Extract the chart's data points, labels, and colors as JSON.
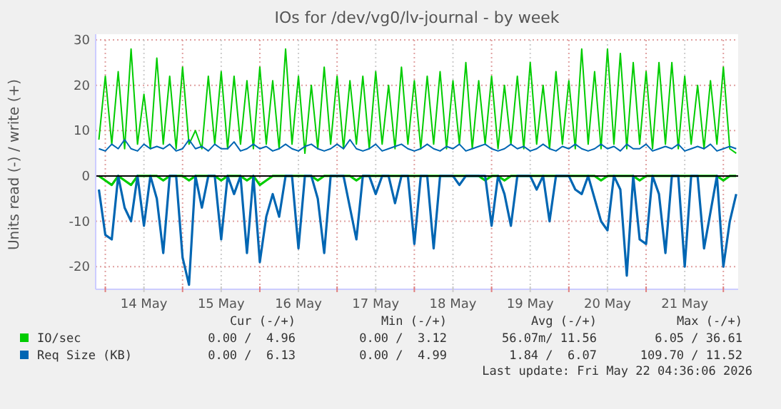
{
  "chart_data": {
    "type": "line",
    "title": "IOs for /dev/vg0/lv-journal - by week",
    "ylabel": "Units read (-) / write (+)",
    "x": [
      "2026-05-13T22:00",
      "2026-05-14T00:00",
      "2026-05-14T02:00",
      "2026-05-14T04:00",
      "2026-05-14T06:00",
      "2026-05-14T08:00",
      "2026-05-14T10:00",
      "2026-05-14T12:00",
      "2026-05-14T14:00",
      "2026-05-14T16:00",
      "2026-05-14T18:00",
      "2026-05-14T20:00",
      "2026-05-14T22:00",
      "2026-05-15T00:00",
      "2026-05-15T02:00",
      "2026-05-15T04:00",
      "2026-05-15T06:00",
      "2026-05-15T08:00",
      "2026-05-15T10:00",
      "2026-05-15T12:00",
      "2026-05-15T14:00",
      "2026-05-15T16:00",
      "2026-05-15T18:00",
      "2026-05-15T20:00",
      "2026-05-15T22:00",
      "2026-05-16T00:00",
      "2026-05-16T02:00",
      "2026-05-16T04:00",
      "2026-05-16T06:00",
      "2026-05-16T08:00",
      "2026-05-16T10:00",
      "2026-05-16T12:00",
      "2026-05-16T14:00",
      "2026-05-16T16:00",
      "2026-05-16T18:00",
      "2026-05-16T20:00",
      "2026-05-16T22:00",
      "2026-05-17T00:00",
      "2026-05-17T02:00",
      "2026-05-17T04:00",
      "2026-05-17T06:00",
      "2026-05-17T08:00",
      "2026-05-17T10:00",
      "2026-05-17T12:00",
      "2026-05-17T14:00",
      "2026-05-17T16:00",
      "2026-05-17T18:00",
      "2026-05-17T20:00",
      "2026-05-17T22:00",
      "2026-05-18T00:00",
      "2026-05-18T02:00",
      "2026-05-18T04:00",
      "2026-05-18T06:00",
      "2026-05-18T08:00",
      "2026-05-18T10:00",
      "2026-05-18T12:00",
      "2026-05-18T14:00",
      "2026-05-18T16:00",
      "2026-05-18T18:00",
      "2026-05-18T20:00",
      "2026-05-18T22:00",
      "2026-05-19T00:00",
      "2026-05-19T02:00",
      "2026-05-19T04:00",
      "2026-05-19T06:00",
      "2026-05-19T08:00",
      "2026-05-19T10:00",
      "2026-05-19T12:00",
      "2026-05-19T14:00",
      "2026-05-19T16:00",
      "2026-05-19T18:00",
      "2026-05-19T20:00",
      "2026-05-19T22:00",
      "2026-05-20T00:00",
      "2026-05-20T02:00",
      "2026-05-20T04:00",
      "2026-05-20T06:00",
      "2026-05-20T08:00",
      "2026-05-20T10:00",
      "2026-05-20T12:00",
      "2026-05-20T14:00",
      "2026-05-20T16:00",
      "2026-05-20T18:00",
      "2026-05-20T20:00",
      "2026-05-20T22:00",
      "2026-05-21T00:00",
      "2026-05-21T02:00",
      "2026-05-21T04:00",
      "2026-05-21T06:00",
      "2026-05-21T08:00",
      "2026-05-21T10:00",
      "2026-05-21T12:00",
      "2026-05-21T14:00",
      "2026-05-21T16:00",
      "2026-05-21T18:00",
      "2026-05-21T20:00",
      "2026-05-21T22:00",
      "2026-05-22T00:00",
      "2026-05-22T02:00",
      "2026-05-22T04:00"
    ],
    "series": [
      {
        "color": "#00cc00",
        "values": [
          0,
          -1,
          -2,
          0,
          -1,
          -2,
          0,
          0,
          0,
          0,
          -1,
          0,
          0,
          0,
          -1,
          0,
          0,
          0,
          0,
          -1,
          0,
          0,
          0,
          -1,
          0,
          -2,
          -1,
          0,
          0,
          0,
          0,
          0,
          0,
          0,
          -1,
          0,
          0,
          0,
          0,
          0,
          -1,
          0,
          0,
          0,
          0,
          0,
          0,
          0,
          0,
          0,
          0,
          0,
          0,
          0,
          0,
          0,
          0,
          0,
          0,
          0,
          -1,
          0,
          0,
          -1,
          0,
          0,
          0,
          0,
          0,
          0,
          0,
          0,
          0,
          0,
          0,
          0,
          0,
          0,
          -1,
          0,
          0,
          0,
          0,
          0,
          -1,
          0,
          0,
          0,
          0,
          0,
          0,
          0,
          0,
          0,
          0,
          0,
          0,
          -1,
          0,
          0
        ]
      },
      {
        "name": "IO/sec",
        "color": "#00cc00",
        "values": [
          8,
          22,
          7,
          23,
          6,
          28,
          7,
          18,
          6,
          26,
          7,
          22,
          6,
          24,
          7,
          10,
          6,
          22,
          7,
          23,
          6,
          22,
          7,
          21,
          6,
          24,
          7,
          21,
          6,
          28,
          7,
          22,
          5,
          20,
          6,
          24,
          7,
          22,
          6,
          21,
          7,
          22,
          6,
          23,
          7,
          20,
          6,
          24,
          7,
          21,
          6,
          22,
          7,
          23,
          6,
          21,
          7,
          25,
          6,
          21,
          7,
          22,
          6,
          20,
          7,
          22,
          6,
          25,
          7,
          20,
          6,
          23,
          7,
          21,
          6,
          28,
          7,
          23,
          6,
          28,
          7,
          27,
          6,
          25,
          7,
          23,
          6,
          25,
          7,
          25,
          6,
          22,
          7,
          20,
          6,
          21,
          7,
          24,
          6,
          5
        ]
      },
      {
        "color": "#0066b3",
        "values": [
          -3,
          -13,
          -14,
          0,
          -7,
          -10,
          0,
          -11,
          0,
          -5,
          -17,
          0,
          0,
          -18,
          -24,
          0,
          -7,
          0,
          0,
          -14,
          0,
          -4,
          0,
          -17,
          0,
          -19,
          -9,
          -4,
          -9,
          0,
          0,
          -16,
          0,
          0,
          -5,
          -17,
          0,
          0,
          0,
          -7,
          -14,
          0,
          0,
          -4,
          0,
          0,
          -6,
          0,
          0,
          -15,
          0,
          0,
          -16,
          0,
          0,
          0,
          -2,
          0,
          0,
          0,
          0,
          -11,
          0,
          -4,
          -11,
          0,
          0,
          0,
          -3,
          0,
          -10,
          0,
          0,
          0,
          -3,
          -4,
          0,
          -5,
          -10,
          -12,
          0,
          -3,
          -22,
          0,
          -14,
          -15,
          0,
          -4,
          -17,
          0,
          0,
          -20,
          0,
          0,
          -16,
          -8,
          0,
          -20,
          -10,
          -4
        ]
      },
      {
        "name": "Req Size (KB)",
        "color": "#0066b3",
        "values": [
          6,
          5.5,
          7,
          6,
          8,
          6,
          5.5,
          7,
          6,
          6.5,
          6,
          7,
          5.5,
          6,
          8,
          6,
          6.5,
          5.5,
          7,
          6,
          6,
          7.5,
          5.5,
          6,
          7,
          6,
          6.5,
          5.5,
          6,
          7,
          6,
          5.5,
          6.5,
          7,
          6,
          5.5,
          6,
          7,
          6,
          8,
          6,
          5.5,
          6,
          7,
          5.5,
          6,
          6.5,
          7,
          6,
          5.5,
          6,
          7,
          6,
          5.5,
          6.5,
          6,
          7,
          5.5,
          6,
          6.5,
          7,
          6,
          5.5,
          6,
          7,
          6,
          6.5,
          5.5,
          6,
          7,
          6,
          5.5,
          6.5,
          6,
          7,
          6,
          5.5,
          6,
          7,
          6,
          6.5,
          5.5,
          7,
          6,
          6,
          7,
          5.5,
          6,
          6.5,
          6,
          7,
          5.5,
          6,
          6.5,
          6,
          7,
          5.5,
          6,
          6.5,
          6
        ]
      }
    ],
    "xlim": [
      "2026-05-13T21:00",
      "2026-05-22T04:36"
    ],
    "xticks": [
      {
        "value": "2026-05-14T00:00",
        "label": null
      },
      {
        "value": "2026-05-14T12:00",
        "label": "14 May"
      },
      {
        "value": "2026-05-15T00:00",
        "label": null
      },
      {
        "value": "2026-05-15T12:00",
        "label": "15 May"
      },
      {
        "value": "2026-05-16T00:00",
        "label": null
      },
      {
        "value": "2026-05-16T12:00",
        "label": "16 May"
      },
      {
        "value": "2026-05-17T00:00",
        "label": null
      },
      {
        "value": "2026-05-17T12:00",
        "label": "17 May"
      },
      {
        "value": "2026-05-18T00:00",
        "label": null
      },
      {
        "value": "2026-05-18T12:00",
        "label": "18 May"
      },
      {
        "value": "2026-05-19T00:00",
        "label": null
      },
      {
        "value": "2026-05-19T12:00",
        "label": "19 May"
      },
      {
        "value": "2026-05-20T00:00",
        "label": null
      },
      {
        "value": "2026-05-20T12:00",
        "label": "20 May"
      },
      {
        "value": "2026-05-21T00:00",
        "label": null
      },
      {
        "value": "2026-05-21T12:00",
        "label": "21 May"
      },
      {
        "value": "2026-05-22T00:00",
        "label": null
      }
    ],
    "ylim": [
      -25,
      30
    ],
    "yticks": [
      -20,
      -10,
      0,
      10,
      20,
      30
    ],
    "grid": true,
    "legend": "bottom",
    "marker": "none",
    "line_style": "solid",
    "ref_lines": [
      {
        "axis": "y",
        "value": 0,
        "color": "#000000"
      }
    ],
    "annotations": [
      "Cur (-/+)",
      "Min (-/+)",
      "Avg (-/+)",
      "Max (-/+)",
      "0.00 /  4.96",
      "0.00 /  3.12",
      "56.07m/ 11.56",
      "6.05 / 36.61",
      "0.00 /  6.13",
      "0.00 /  4.99",
      "1.84 /  6.07",
      "109.70 / 11.52",
      "Last update: Fri May 22 04:36:06 2026"
    ]
  }
}
